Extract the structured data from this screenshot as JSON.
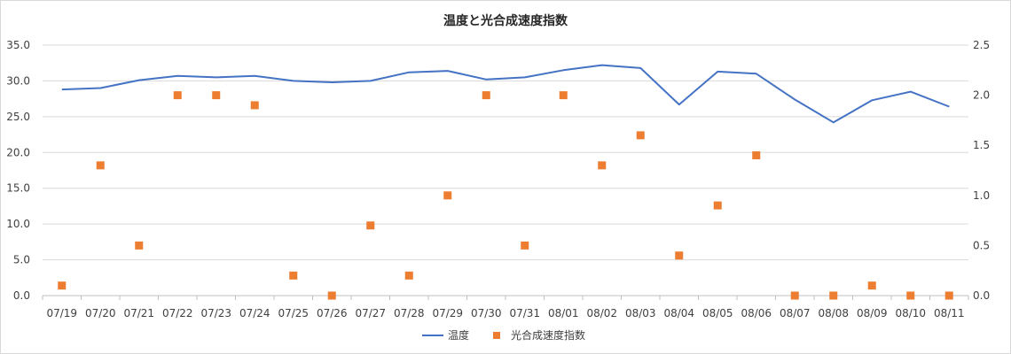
{
  "chart_data": {
    "type": "line",
    "title": "温度と光合成速度指数",
    "categories": [
      "07/19",
      "07/20",
      "07/21",
      "07/22",
      "07/23",
      "07/24",
      "07/25",
      "07/26",
      "07/27",
      "07/28",
      "07/29",
      "07/30",
      "07/31",
      "08/01",
      "08/02",
      "08/03",
      "08/04",
      "08/05",
      "08/06",
      "08/07",
      "08/08",
      "08/09",
      "08/10",
      "08/11"
    ],
    "series": [
      {
        "name": "温度",
        "type": "line",
        "axis": "left",
        "color": "#4472c4",
        "values": [
          28.8,
          29.0,
          30.1,
          30.7,
          30.5,
          30.7,
          30.0,
          29.8,
          30.0,
          31.2,
          31.4,
          30.2,
          30.5,
          31.5,
          32.2,
          31.8,
          26.7,
          31.3,
          31.0,
          27.4,
          24.2,
          27.3,
          28.5,
          26.4
        ]
      },
      {
        "name": "光合成速度指数",
        "type": "scatter",
        "axis": "right",
        "color": "#ed7d31",
        "values": [
          0.1,
          1.3,
          0.5,
          2.0,
          2.0,
          1.9,
          0.2,
          0.0,
          0.7,
          0.2,
          1.0,
          2.0,
          0.5,
          2.0,
          1.3,
          1.6,
          0.4,
          0.9,
          1.4,
          0.0,
          0.0,
          0.1,
          0.0,
          0.0
        ]
      }
    ],
    "y_left": {
      "min": 0,
      "max": 35,
      "step": 5,
      "tick_labels": [
        "0.0",
        "5.0",
        "10.0",
        "15.0",
        "20.0",
        "25.0",
        "30.0",
        "35.0"
      ]
    },
    "y_right": {
      "min": 0,
      "max": 2.5,
      "step": 0.5,
      "tick_labels": [
        "0.0",
        "0.5",
        "1.0",
        "1.5",
        "2.0",
        "2.5"
      ]
    },
    "grid": true,
    "legend_position": "bottom"
  }
}
